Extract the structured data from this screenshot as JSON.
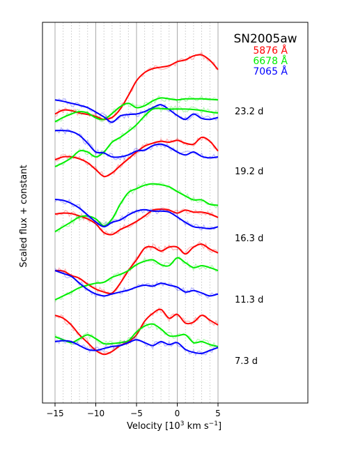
{
  "chart_data": {
    "type": "line",
    "title": "SN2005aw",
    "xlabel": "Velocity [10",
    "xlabel_sup": "3",
    "xlabel_mid": " km s",
    "xlabel_sup2": "−1",
    "xlabel_end": "]",
    "ylabel": "Scaled flux + constant",
    "xlim": [
      -15,
      5
    ],
    "xticks": [
      {
        "value": -15,
        "label": "−15"
      },
      {
        "value": -10,
        "label": "−10"
      },
      {
        "value": -5,
        "label": "−5"
      },
      {
        "value": 0,
        "label": "0"
      },
      {
        "value": 5,
        "label": "5"
      }
    ],
    "grid": {
      "solid_x": [
        -15,
        -10,
        -5,
        0,
        5
      ],
      "dotted_step": 1
    },
    "legend": [
      {
        "label": "5876 Å",
        "color": "#ff0000"
      },
      {
        "label": "6678 Å",
        "color": "#00ee00"
      },
      {
        "label": "7065 Å",
        "color": "#0000ff"
      }
    ],
    "epochs": [
      {
        "label": "23.2 d",
        "series": [
          {
            "name": "5876 Å",
            "color": "#ff0000",
            "x": [
              -15,
              -14,
              -13,
              -12,
              -11,
              -10,
              -9,
              -8,
              -7,
              -6,
              -5,
              -4,
              -3,
              -2,
              -1,
              0,
              1,
              2,
              3,
              4,
              5
            ],
            "y": [
              -0.05,
              0.03,
              0.02,
              -0.03,
              -0.06,
              -0.1,
              -0.16,
              -0.12,
              0.05,
              0.33,
              0.63,
              0.8,
              0.88,
              0.91,
              0.94,
              1.02,
              1.06,
              1.14,
              1.16,
              1.05,
              0.86
            ]
          },
          {
            "name": "6678 Å",
            "color": "#00ee00",
            "x": [
              -15,
              -14,
              -13,
              -12,
              -11,
              -10,
              -9,
              -8,
              -7,
              -6,
              -5,
              -4,
              -3,
              -2,
              -1,
              0,
              1,
              2,
              3,
              4,
              5
            ],
            "y": [
              -0.21,
              -0.12,
              -0.05,
              0.0,
              -0.03,
              -0.13,
              -0.16,
              -0.04,
              0.1,
              0.17,
              0.08,
              0.12,
              0.22,
              0.28,
              0.26,
              0.24,
              0.26,
              0.26,
              0.26,
              0.25,
              0.24
            ]
          },
          {
            "name": "7065 Å",
            "color": "#0000ff",
            "x": [
              -15,
              -14,
              -13,
              -12,
              -11,
              -10,
              -9,
              -8,
              -7,
              -6,
              -5,
              -4,
              -3,
              -2,
              -1,
              0,
              1,
              2,
              3,
              4,
              5
            ],
            "y": [
              0.24,
              0.21,
              0.17,
              0.13,
              0.08,
              -0.01,
              -0.11,
              -0.22,
              -0.09,
              -0.06,
              -0.05,
              0.0,
              0.08,
              0.14,
              0.04,
              -0.08,
              -0.16,
              -0.05,
              -0.14,
              -0.16,
              -0.12
            ]
          }
        ]
      },
      {
        "label": "19.2 d",
        "series": [
          {
            "name": "5876 Å",
            "color": "#ff0000",
            "x": [
              -15,
              -14,
              -13,
              -12,
              -11,
              -10,
              -9,
              -8,
              -7,
              -6,
              -5,
              -4,
              -3,
              -2,
              -1,
              0,
              1,
              2,
              3,
              4,
              5
            ],
            "y": [
              0.24,
              0.3,
              0.3,
              0.26,
              0.18,
              0.04,
              -0.1,
              -0.03,
              0.12,
              0.26,
              0.4,
              0.52,
              0.58,
              0.62,
              0.6,
              0.64,
              0.58,
              0.56,
              0.7,
              0.62,
              0.42
            ]
          },
          {
            "name": "6678 Å",
            "color": "#00ee00",
            "x": [
              -15,
              -14,
              -13,
              -12,
              -11,
              -10,
              -9,
              -8,
              -7,
              -6,
              -5,
              -4,
              -3,
              -2,
              -1,
              0,
              1,
              2,
              3,
              4,
              5
            ],
            "y": [
              0.1,
              0.18,
              0.28,
              0.42,
              0.4,
              0.3,
              0.4,
              0.6,
              0.7,
              0.82,
              0.96,
              1.14,
              1.28,
              1.29,
              1.28,
              1.28,
              1.28,
              1.27,
              1.25,
              1.22,
              1.2
            ]
          },
          {
            "name": "7065 Å",
            "color": "#0000ff",
            "x": [
              -15,
              -14,
              -13,
              -12,
              -11,
              -10,
              -9,
              -8,
              -7,
              -6,
              -5,
              -4,
              -3,
              -2,
              -1,
              0,
              1,
              2,
              3,
              4,
              5
            ],
            "y": [
              0.84,
              0.84,
              0.82,
              0.74,
              0.58,
              0.4,
              0.38,
              0.3,
              0.3,
              0.34,
              0.42,
              0.44,
              0.53,
              0.56,
              0.5,
              0.4,
              0.34,
              0.4,
              0.31,
              0.28,
              0.3
            ]
          }
        ]
      },
      {
        "label": "16.3 d",
        "series": [
          {
            "name": "5876 Å",
            "color": "#ff0000",
            "x": [
              -15,
              -14,
              -13,
              -12,
              -11,
              -10,
              -9,
              -8,
              -7,
              -6,
              -5,
              -4,
              -3,
              -2,
              -1,
              0,
              1,
              2,
              3,
              4,
              5
            ],
            "y": [
              0.5,
              0.52,
              0.51,
              0.46,
              0.4,
              0.3,
              0.12,
              0.08,
              0.18,
              0.26,
              0.35,
              0.46,
              0.58,
              0.6,
              0.58,
              0.52,
              0.58,
              0.54,
              0.54,
              0.5,
              0.43
            ]
          },
          {
            "name": "6678 Å",
            "color": "#00ee00",
            "x": [
              -15,
              -14,
              -13,
              -12,
              -11,
              -10,
              -9,
              -8,
              -7,
              -6,
              -5,
              -4,
              -3,
              -2,
              -1,
              0,
              1,
              2,
              3,
              4,
              5
            ],
            "y": [
              0.14,
              0.24,
              0.34,
              0.44,
              0.46,
              0.4,
              0.26,
              0.4,
              0.7,
              0.94,
              1.02,
              1.09,
              1.12,
              1.1,
              1.06,
              0.96,
              0.87,
              0.79,
              0.79,
              0.7,
              0.68
            ]
          },
          {
            "name": "7065 Å",
            "color": "#0000ff",
            "x": [
              -15,
              -14,
              -13,
              -12,
              -11,
              -10,
              -9,
              -8,
              -7,
              -6,
              -5,
              -4,
              -3,
              -2,
              -1,
              0,
              1,
              2,
              3,
              4,
              5
            ],
            "y": [
              0.8,
              0.78,
              0.72,
              0.62,
              0.48,
              0.34,
              0.24,
              0.33,
              0.38,
              0.48,
              0.56,
              0.59,
              0.56,
              0.56,
              0.54,
              0.44,
              0.33,
              0.24,
              0.22,
              0.2,
              0.24
            ]
          }
        ]
      },
      {
        "label": "11.3 d",
        "series": [
          {
            "name": "5876 Å",
            "color": "#ff0000",
            "x": [
              -15,
              -14,
              -13,
              -12,
              -11,
              -10,
              -9,
              -8,
              -7,
              -6,
              -5,
              -4,
              -3,
              -2,
              -1,
              0,
              1,
              2,
              3,
              4,
              5
            ],
            "y": [
              0.6,
              0.59,
              0.5,
              0.44,
              0.32,
              0.22,
              0.16,
              0.14,
              0.34,
              0.6,
              0.82,
              1.06,
              1.08,
              1.0,
              1.08,
              1.08,
              0.94,
              1.08,
              1.14,
              1.04,
              0.96
            ]
          },
          {
            "name": "6678 Å",
            "color": "#00ee00",
            "x": [
              -15,
              -14,
              -13,
              -12,
              -11,
              -10,
              -9,
              -8,
              -7,
              -6,
              -5,
              -4,
              -3,
              -2,
              -1,
              0,
              1,
              2,
              3,
              4,
              5
            ],
            "y": [
              0.0,
              0.08,
              0.16,
              0.25,
              0.3,
              0.34,
              0.36,
              0.46,
              0.52,
              0.6,
              0.72,
              0.79,
              0.82,
              0.72,
              0.7,
              0.86,
              0.76,
              0.66,
              0.7,
              0.66,
              0.6
            ]
          },
          {
            "name": "7065 Å",
            "color": "#0000ff",
            "x": [
              -15,
              -14,
              -13,
              -12,
              -11,
              -10,
              -9,
              -8,
              -7,
              -6,
              -5,
              -4,
              -3,
              -2,
              -1,
              0,
              1,
              2,
              3,
              4,
              5
            ],
            "y": [
              0.6,
              0.54,
              0.48,
              0.34,
              0.21,
              0.12,
              0.08,
              0.12,
              0.16,
              0.2,
              0.26,
              0.3,
              0.28,
              0.34,
              0.3,
              0.26,
              0.16,
              0.19,
              0.14,
              0.08,
              0.12
            ]
          }
        ]
      },
      {
        "label": "7.3 d",
        "series": [
          {
            "name": "5876 Å",
            "color": "#ff0000",
            "x": [
              -15,
              -14,
              -13,
              -12,
              -11,
              -10,
              -9,
              -8,
              -7,
              -6,
              -5,
              -4,
              -3,
              -2,
              -1,
              0,
              1,
              2,
              3,
              4,
              5
            ],
            "y": [
              0.94,
              0.88,
              0.74,
              0.54,
              0.38,
              0.22,
              0.14,
              0.2,
              0.32,
              0.4,
              0.54,
              0.82,
              0.98,
              1.06,
              0.88,
              0.96,
              0.78,
              0.8,
              0.94,
              0.84,
              0.74
            ]
          },
          {
            "name": "6678 Å",
            "color": "#00ee00",
            "x": [
              -15,
              -14,
              -13,
              -12,
              -11,
              -10,
              -9,
              -8,
              -7,
              -6,
              -5,
              -4,
              -3,
              -2,
              -1,
              0,
              1,
              2,
              3,
              4,
              5
            ],
            "y": [
              0.5,
              0.44,
              0.38,
              0.46,
              0.54,
              0.46,
              0.36,
              0.36,
              0.38,
              0.42,
              0.6,
              0.72,
              0.76,
              0.66,
              0.52,
              0.52,
              0.54,
              0.38,
              0.4,
              0.34,
              0.3
            ]
          },
          {
            "name": "7065 Å",
            "color": "#0000ff",
            "x": [
              -15,
              -14,
              -13,
              -12,
              -11,
              -10,
              -9,
              -8,
              -7,
              -6,
              -5,
              -4,
              -3,
              -2,
              -1,
              0,
              1,
              2,
              3,
              4,
              5
            ],
            "y": [
              0.4,
              0.42,
              0.4,
              0.32,
              0.24,
              0.22,
              0.26,
              0.3,
              0.32,
              0.38,
              0.44,
              0.38,
              0.32,
              0.4,
              0.34,
              0.38,
              0.24,
              0.18,
              0.16,
              0.22,
              0.28
            ]
          }
        ]
      }
    ]
  }
}
